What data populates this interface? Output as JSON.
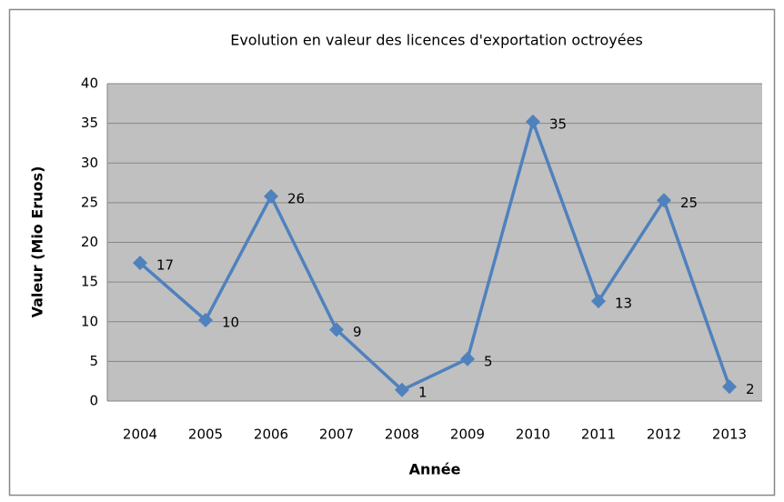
{
  "chart_data": {
    "type": "line",
    "title": "Evolution en valeur des licences d'exportation octroyées",
    "x_label": "Année",
    "y_label": "Valeur (Mio Eruos)",
    "categories": [
      "2004",
      "2005",
      "2006",
      "2007",
      "2008",
      "2009",
      "2010",
      "2011",
      "2012",
      "2013"
    ],
    "series": [
      {
        "name": "Valeur",
        "color": "#4f81bd",
        "values": [
          17.4,
          10.2,
          25.8,
          9,
          1.4,
          5.3,
          35.2,
          12.6,
          25.3,
          1.8
        ],
        "value_labels": [
          "17",
          "10",
          "26",
          "9",
          "1",
          "5",
          "35",
          "13",
          "25",
          "2"
        ]
      }
    ],
    "ylim": [
      0,
      40
    ],
    "yticks": [
      0,
      5,
      10,
      15,
      20,
      25,
      30,
      35,
      40
    ],
    "grid": true
  }
}
